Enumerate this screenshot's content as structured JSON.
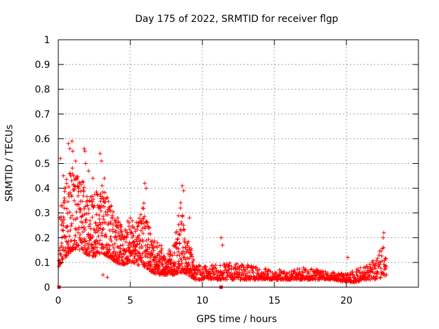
{
  "chart_data": {
    "type": "scatter",
    "title": "Day 175 of 2022, SRMTID for receiver flgp",
    "xlabel": "GPS time / hours",
    "ylabel": "SRMTID / TECUs",
    "xlim": [
      0,
      25
    ],
    "ylim": [
      0,
      1
    ],
    "xticks": [
      0,
      5,
      10,
      15,
      20
    ],
    "yticks": [
      0,
      0.1,
      0.2,
      0.3,
      0.4,
      0.5,
      0.6,
      0.7,
      0.8,
      0.9,
      1
    ],
    "xtick_labels": [
      "0",
      "5",
      "10",
      "15",
      "20"
    ],
    "ytick_labels": [
      "0",
      "0.1",
      "0.2",
      "0.3",
      "0.4",
      "0.5",
      "0.6",
      "0.7",
      "0.8",
      "0.9",
      "1"
    ],
    "grid": true,
    "legend": "none",
    "marker": "plus",
    "series_color": "#ff0000",
    "zero_markers_x": [
      0.05,
      11.3
    ],
    "envelope": {
      "description": "approximate value bands of the dense scatter, by GPS hour",
      "hours": [
        0,
        0.5,
        1,
        1.5,
        2,
        2.5,
        3,
        3.5,
        4,
        4.5,
        5,
        5.5,
        6,
        6.5,
        7,
        7.5,
        8,
        8.5,
        9,
        9.5,
        10,
        11,
        12,
        13,
        14,
        15,
        16,
        17,
        18,
        19,
        20,
        21,
        21.5,
        22,
        22.5,
        22.8
      ],
      "low": [
        0.08,
        0.12,
        0.15,
        0.15,
        0.13,
        0.12,
        0.14,
        0.12,
        0.1,
        0.09,
        0.1,
        0.09,
        0.08,
        0.06,
        0.05,
        0.05,
        0.05,
        0.06,
        0.05,
        0.03,
        0.03,
        0.03,
        0.03,
        0.03,
        0.03,
        0.03,
        0.03,
        0.03,
        0.03,
        0.03,
        0.02,
        0.02,
        0.03,
        0.03,
        0.04,
        0.05
      ],
      "high": [
        0.3,
        0.45,
        0.5,
        0.45,
        0.4,
        0.38,
        0.42,
        0.35,
        0.3,
        0.25,
        0.28,
        0.27,
        0.35,
        0.2,
        0.18,
        0.14,
        0.17,
        0.35,
        0.2,
        0.1,
        0.08,
        0.1,
        0.1,
        0.09,
        0.08,
        0.07,
        0.07,
        0.08,
        0.07,
        0.06,
        0.06,
        0.08,
        0.09,
        0.12,
        0.18,
        0.12
      ]
    },
    "outliers": [
      {
        "x": 0.15,
        "y": 0.52
      },
      {
        "x": 0.35,
        "y": 0.45
      },
      {
        "x": 0.7,
        "y": 0.58
      },
      {
        "x": 0.8,
        "y": 0.56
      },
      {
        "x": 0.95,
        "y": 0.59
      },
      {
        "x": 1.0,
        "y": 0.55
      },
      {
        "x": 1.2,
        "y": 0.51
      },
      {
        "x": 1.8,
        "y": 0.56
      },
      {
        "x": 1.85,
        "y": 0.55
      },
      {
        "x": 1.9,
        "y": 0.5
      },
      {
        "x": 2.1,
        "y": 0.47
      },
      {
        "x": 2.4,
        "y": 0.44
      },
      {
        "x": 2.9,
        "y": 0.54
      },
      {
        "x": 3.0,
        "y": 0.51
      },
      {
        "x": 3.2,
        "y": 0.44
      },
      {
        "x": 3.1,
        "y": 0.05
      },
      {
        "x": 3.4,
        "y": 0.04
      },
      {
        "x": 6.0,
        "y": 0.42
      },
      {
        "x": 6.1,
        "y": 0.4
      },
      {
        "x": 8.6,
        "y": 0.41
      },
      {
        "x": 8.7,
        "y": 0.39
      },
      {
        "x": 9.1,
        "y": 0.28
      },
      {
        "x": 11.3,
        "y": 0.2
      },
      {
        "x": 11.4,
        "y": 0.17
      },
      {
        "x": 22.6,
        "y": 0.22
      },
      {
        "x": 22.55,
        "y": 0.2
      },
      {
        "x": 20.1,
        "y": 0.12
      }
    ]
  }
}
